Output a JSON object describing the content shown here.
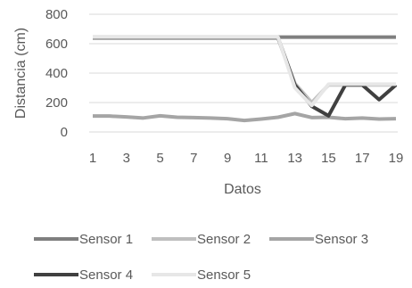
{
  "chart_data": {
    "type": "line",
    "title": "",
    "xlabel": "Datos",
    "ylabel": "Distancia (cm)",
    "x": [
      1,
      2,
      3,
      4,
      5,
      6,
      7,
      8,
      9,
      10,
      11,
      12,
      13,
      14,
      15,
      16,
      17,
      18,
      19
    ],
    "x_tick_labels": [
      "1",
      "3",
      "5",
      "7",
      "9",
      "11",
      "13",
      "15",
      "17",
      "19"
    ],
    "ylim": [
      0,
      800
    ],
    "y_ticks": [
      "0",
      "200",
      "400",
      "600",
      "800"
    ],
    "grid": "horizontal",
    "legend_position": "bottom",
    "series": [
      {
        "name": "Sensor 1",
        "color": "#7f7f7f",
        "values": [
          645,
          645,
          645,
          645,
          645,
          645,
          645,
          645,
          645,
          645,
          645,
          645,
          645,
          645,
          645,
          645,
          645,
          645,
          645
        ]
      },
      {
        "name": "Sensor 2",
        "color": "#bfbfbf",
        "values": [
          640,
          640,
          640,
          640,
          640,
          640,
          640,
          640,
          640,
          640,
          640,
          640,
          330,
          200,
          320,
          320,
          320,
          320,
          320
        ]
      },
      {
        "name": "Sensor 3",
        "color": "#a5a5a5",
        "values": [
          108,
          108,
          102,
          95,
          110,
          100,
          98,
          95,
          90,
          78,
          88,
          100,
          125,
          98,
          100,
          90,
          95,
          88,
          90
        ]
      },
      {
        "name": "Sensor 4",
        "color": "#404040",
        "values": [
          640,
          640,
          640,
          640,
          640,
          640,
          640,
          640,
          640,
          640,
          640,
          640,
          320,
          175,
          110,
          320,
          320,
          220,
          320
        ]
      },
      {
        "name": "Sensor 5",
        "color": "#e7e7e7",
        "values": [
          645,
          645,
          645,
          645,
          645,
          645,
          645,
          645,
          645,
          645,
          645,
          645,
          300,
          180,
          325,
          325,
          325,
          325,
          325
        ]
      }
    ]
  }
}
